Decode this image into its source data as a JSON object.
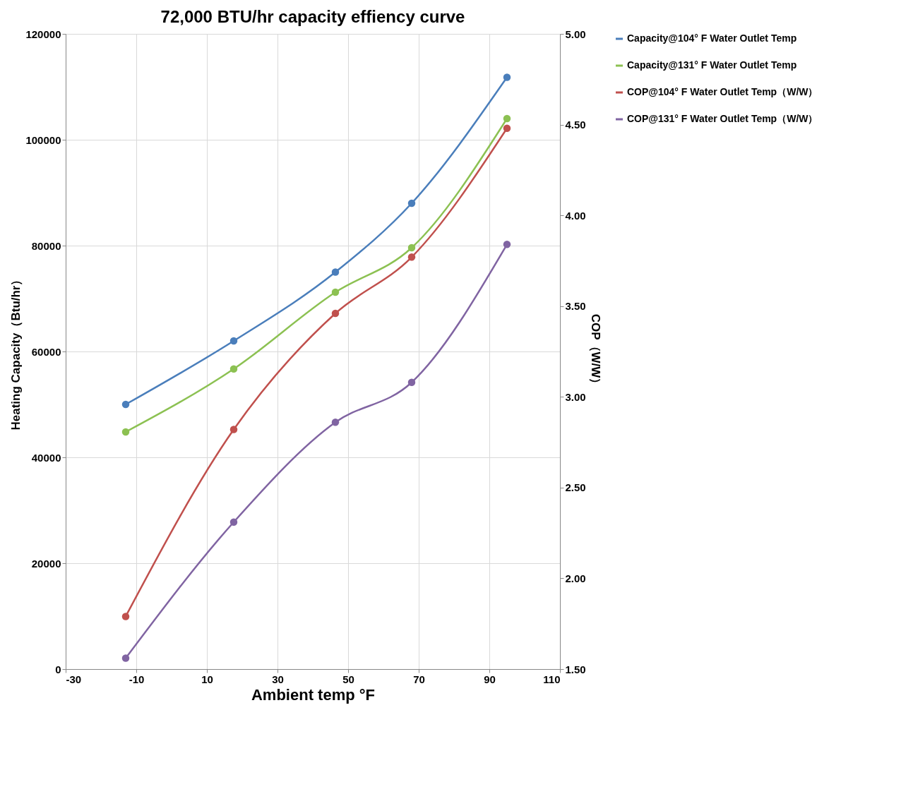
{
  "chart_data": {
    "type": "line",
    "title": "72,000 BTU/hr capacity effiency curve",
    "xlabel": "Ambient temp °F",
    "ylabel": "Heating Capacity（Btu/hr）",
    "y2label": "COP（W/W）",
    "x": [
      -13,
      17.6,
      46.4,
      68,
      95
    ],
    "series": [
      {
        "name": "Capacity@104° F Water Outlet Temp",
        "color": "#4a7ebb",
        "values": [
          50000,
          62000,
          75000,
          88000,
          111800
        ]
      },
      {
        "name": "Capacity@131° F Water Outlet Temp",
        "color": "#8cc152",
        "values": [
          44800,
          56700,
          71200,
          79600,
          104000
        ]
      },
      {
        "name": "COP@104° F Water Outlet Temp（W/W）",
        "color": "#c0504d",
        "axis": "y2",
        "values": [
          1.79,
          2.82,
          3.46,
          3.77,
          4.48
        ]
      },
      {
        "name": "COP@131° F Water Outlet Temp（W/W）",
        "color": "#8064a2",
        "axis": "y2",
        "values": [
          1.56,
          2.31,
          2.86,
          3.08,
          3.84
        ]
      }
    ],
    "xlim": [
      -30,
      110
    ],
    "xticks": [
      -30,
      -10,
      10,
      30,
      50,
      70,
      90,
      110
    ],
    "ylim": [
      0,
      120000
    ],
    "yticks": [
      0,
      20000,
      40000,
      60000,
      80000,
      100000,
      120000
    ],
    "y2lim": [
      1.5,
      5
    ],
    "y2ticks": [
      {
        "value": 1.5,
        "label": "1.50"
      },
      {
        "value": 2,
        "label": "2.00"
      },
      {
        "value": 2.5,
        "label": "2.50"
      },
      {
        "value": 3,
        "label": "3.00"
      },
      {
        "value": 3.5,
        "label": "3.50"
      },
      {
        "value": 4,
        "label": "4.00"
      },
      {
        "value": 4.5,
        "label": "4.50"
      },
      {
        "value": 5,
        "label": "5.00"
      }
    ],
    "grid": true,
    "legend": "right",
    "marker": "circle",
    "line_style": "solid"
  }
}
